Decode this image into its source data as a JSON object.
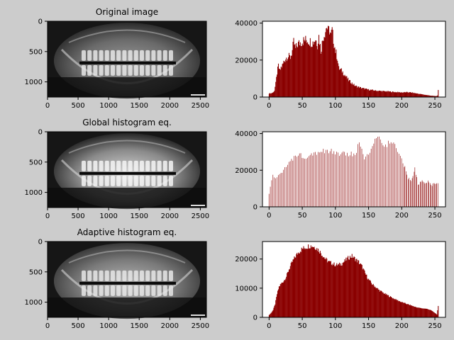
{
  "figure": {
    "background": "#cccccc",
    "hist_color": "#8b0000"
  },
  "chart_data": [
    {
      "type": "image",
      "title": "Original image",
      "content": "panoramic dental x-ray",
      "xlim": [
        0,
        2600
      ],
      "ylim": [
        1250,
        0
      ],
      "xticks": [
        0,
        500,
        1000,
        1500,
        2000,
        2500
      ],
      "yticks": [
        0,
        500,
        1000
      ]
    },
    {
      "type": "bar",
      "title": "",
      "xlim": [
        -10,
        266
      ],
      "ylim": [
        0,
        41000
      ],
      "xticks": [
        0,
        50,
        100,
        150,
        200,
        250
      ],
      "yticks": [
        0,
        20000,
        40000
      ],
      "profile": "original",
      "envelope": [
        [
          0,
          2000
        ],
        [
          3,
          2000
        ],
        [
          6,
          2500
        ],
        [
          8,
          3500
        ],
        [
          10,
          7500
        ],
        [
          12,
          13000
        ],
        [
          14,
          17000
        ],
        [
          16,
          14000
        ],
        [
          18,
          16000
        ],
        [
          20,
          17000
        ],
        [
          22,
          19000
        ],
        [
          25,
          21000
        ],
        [
          28,
          22000
        ],
        [
          32,
          21500
        ],
        [
          35,
          25000
        ],
        [
          37,
          29500
        ],
        [
          40,
          26000
        ],
        [
          43,
          28500
        ],
        [
          47,
          29500
        ],
        [
          52,
          30500
        ],
        [
          57,
          31000
        ],
        [
          62,
          30000
        ],
        [
          66,
          29500
        ],
        [
          70,
          31500
        ],
        [
          73,
          28500
        ],
        [
          75,
          33000
        ],
        [
          78,
          25000
        ],
        [
          82,
          33000
        ],
        [
          85,
          36000
        ],
        [
          87,
          38500
        ],
        [
          89,
          35500
        ],
        [
          91,
          36500
        ],
        [
          93,
          33000
        ],
        [
          95,
          36000
        ],
        [
          97,
          31000
        ],
        [
          100,
          25000
        ],
        [
          103,
          21000
        ],
        [
          105,
          15500
        ],
        [
          110,
          14000
        ],
        [
          115,
          11500
        ],
        [
          120,
          9000
        ],
        [
          125,
          7500
        ],
        [
          130,
          6000
        ],
        [
          140,
          4800
        ],
        [
          150,
          4000
        ],
        [
          160,
          3500
        ],
        [
          170,
          3200
        ],
        [
          180,
          3000
        ],
        [
          190,
          2700
        ],
        [
          200,
          2500
        ],
        [
          210,
          2600
        ],
        [
          215,
          2400
        ],
        [
          225,
          1800
        ],
        [
          235,
          1200
        ],
        [
          245,
          700
        ],
        [
          252,
          500
        ],
        [
          254,
          800
        ],
        [
          255,
          3500
        ]
      ]
    },
    {
      "type": "image",
      "title": "Global histogram eq.",
      "content": "panoramic dental x-ray, global equalized",
      "xlim": [
        0,
        2600
      ],
      "ylim": [
        1250,
        0
      ],
      "xticks": [
        0,
        500,
        1000,
        1500,
        2000,
        2500
      ],
      "yticks": [
        0,
        500,
        1000
      ]
    },
    {
      "type": "bar",
      "title": "",
      "xlim": [
        -10,
        266
      ],
      "ylim": [
        0,
        41000
      ],
      "xticks": [
        0,
        50,
        100,
        150,
        200,
        250
      ],
      "yticks": [
        0,
        20000,
        40000
      ],
      "profile": "global",
      "envelope": [
        [
          0,
          7500
        ],
        [
          3,
          13000
        ],
        [
          6,
          17000
        ],
        [
          10,
          16000
        ],
        [
          15,
          18000
        ],
        [
          20,
          20000
        ],
        [
          25,
          22000
        ],
        [
          30,
          24000
        ],
        [
          35,
          26000
        ],
        [
          40,
          28500
        ],
        [
          45,
          30000
        ],
        [
          50,
          28000
        ],
        [
          55,
          28000
        ],
        [
          60,
          29000
        ],
        [
          65,
          30000
        ],
        [
          70,
          30000
        ],
        [
          75,
          31000
        ],
        [
          80,
          31000
        ],
        [
          85,
          31000
        ],
        [
          90,
          31000
        ],
        [
          95,
          31000
        ],
        [
          100,
          29000
        ],
        [
          105,
          30000
        ],
        [
          110,
          29000
        ],
        [
          115,
          30000
        ],
        [
          120,
          29000
        ],
        [
          125,
          30000
        ],
        [
          130,
          28000
        ],
        [
          135,
          35500
        ],
        [
          140,
          31000
        ],
        [
          145,
          27000
        ],
        [
          150,
          29000
        ],
        [
          155,
          33000
        ],
        [
          160,
          37000
        ],
        [
          165,
          38500
        ],
        [
          170,
          36000
        ],
        [
          175,
          33000
        ],
        [
          180,
          36000
        ],
        [
          185,
          37500
        ],
        [
          190,
          34000
        ],
        [
          195,
          31000
        ],
        [
          200,
          26000
        ],
        [
          205,
          22000
        ],
        [
          210,
          16000
        ],
        [
          215,
          14000
        ],
        [
          220,
          22000
        ],
        [
          225,
          12000
        ],
        [
          230,
          15000
        ],
        [
          235,
          13000
        ],
        [
          240,
          14000
        ],
        [
          245,
          12000
        ],
        [
          250,
          13000
        ],
        [
          255,
          13000
        ]
      ]
    },
    {
      "type": "image",
      "title": "Adaptive histogram eq.",
      "content": "panoramic dental x-ray, adaptive equalized",
      "xlim": [
        0,
        2600
      ],
      "ylim": [
        1250,
        0
      ],
      "xticks": [
        0,
        500,
        1000,
        1500,
        2000,
        2500
      ],
      "yticks": [
        0,
        500,
        1000
      ]
    },
    {
      "type": "bar",
      "title": "",
      "xlim": [
        -10,
        266
      ],
      "ylim": [
        0,
        26000
      ],
      "xticks": [
        0,
        50,
        100,
        150,
        200,
        250
      ],
      "yticks": [
        0,
        10000,
        20000
      ],
      "profile": "adaptive",
      "envelope": [
        [
          0,
          800
        ],
        [
          3,
          1500
        ],
        [
          6,
          2500
        ],
        [
          9,
          4500
        ],
        [
          12,
          8000
        ],
        [
          15,
          10500
        ],
        [
          18,
          11500
        ],
        [
          22,
          12500
        ],
        [
          26,
          14000
        ],
        [
          30,
          16500
        ],
        [
          35,
          19000
        ],
        [
          40,
          21000
        ],
        [
          45,
          22500
        ],
        [
          50,
          23500
        ],
        [
          55,
          24000
        ],
        [
          60,
          24500
        ],
        [
          65,
          24500
        ],
        [
          70,
          24000
        ],
        [
          75,
          23000
        ],
        [
          80,
          21500
        ],
        [
          85,
          20000
        ],
        [
          90,
          19000
        ],
        [
          95,
          18500
        ],
        [
          100,
          18000
        ],
        [
          105,
          18000
        ],
        [
          110,
          18500
        ],
        [
          115,
          19500
        ],
        [
          120,
          20500
        ],
        [
          125,
          21000
        ],
        [
          130,
          20000
        ],
        [
          135,
          19000
        ],
        [
          140,
          17500
        ],
        [
          145,
          15000
        ],
        [
          150,
          13000
        ],
        [
          155,
          11500
        ],
        [
          160,
          10500
        ],
        [
          165,
          9500
        ],
        [
          170,
          8700
        ],
        [
          175,
          8000
        ],
        [
          180,
          7400
        ],
        [
          185,
          6800
        ],
        [
          190,
          6200
        ],
        [
          195,
          5700
        ],
        [
          200,
          5200
        ],
        [
          205,
          4800
        ],
        [
          210,
          4400
        ],
        [
          215,
          4000
        ],
        [
          220,
          3600
        ],
        [
          225,
          3300
        ],
        [
          230,
          3100
        ],
        [
          235,
          3000
        ],
        [
          240,
          2800
        ],
        [
          245,
          2300
        ],
        [
          250,
          1500
        ],
        [
          253,
          900
        ],
        [
          255,
          4000
        ]
      ]
    }
  ]
}
